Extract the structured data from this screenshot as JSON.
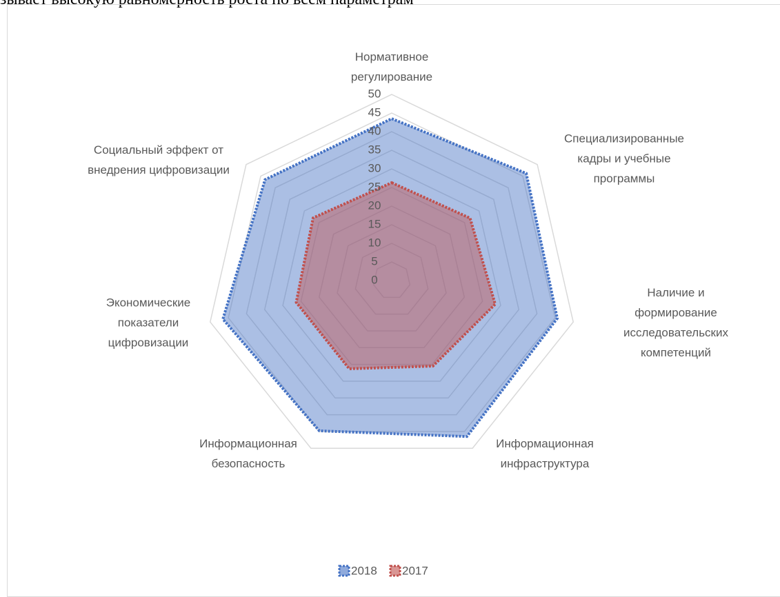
{
  "caption": "зывает высокую равномерность роста по всем параметрам",
  "chart_data": {
    "type": "radar",
    "categories": [
      "Нормативное\nрегулирование",
      "Специализированные\nкадры и учебные\nпрограммы",
      "Наличие и формирование\nисследовательских\nкомпетенций",
      "Информационная\nинфраструктура",
      "Информационная\nбезопасность",
      "Экономические\nпоказатели\nцифровизации",
      "Социальный эффект от\nвнедрения цифровизации"
    ],
    "series": [
      {
        "name": "2018",
        "color": "#4472c4",
        "values": [
          43.5,
          46.2,
          45.6,
          46.5,
          44.8,
          46.5,
          43.5
        ]
      },
      {
        "name": "2017",
        "color": "#c0504d",
        "values": [
          26.3,
          26.9,
          28.5,
          25.5,
          26.3,
          26.3,
          27
        ]
      }
    ],
    "ylim": [
      0,
      50
    ],
    "yticks": [
      0,
      5,
      10,
      15,
      20,
      25,
      30,
      35,
      40,
      45,
      50
    ],
    "grid": true,
    "legend": "bottom"
  }
}
